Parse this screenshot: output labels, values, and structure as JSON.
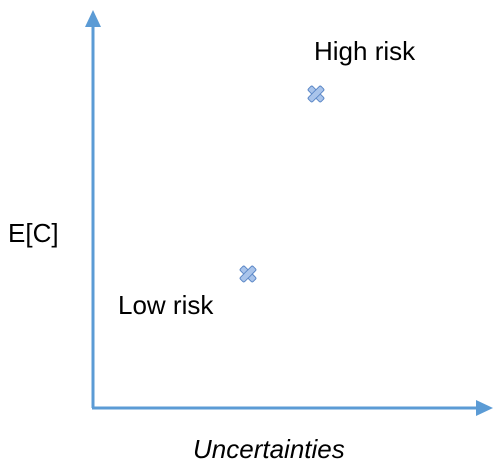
{
  "diagram": {
    "y_axis_label": "E[C]",
    "x_axis_label": "Uncertainties",
    "points": [
      {
        "label": "High risk"
      },
      {
        "label": "Low risk"
      }
    ]
  },
  "colors": {
    "axis": "#5b9bd5",
    "marker_fill": "#a9c4eb",
    "marker_stroke": "#5b87c6",
    "text": "#000000"
  },
  "icons": {
    "marker": "x-mark-icon",
    "arrow": "arrowhead-icon"
  }
}
